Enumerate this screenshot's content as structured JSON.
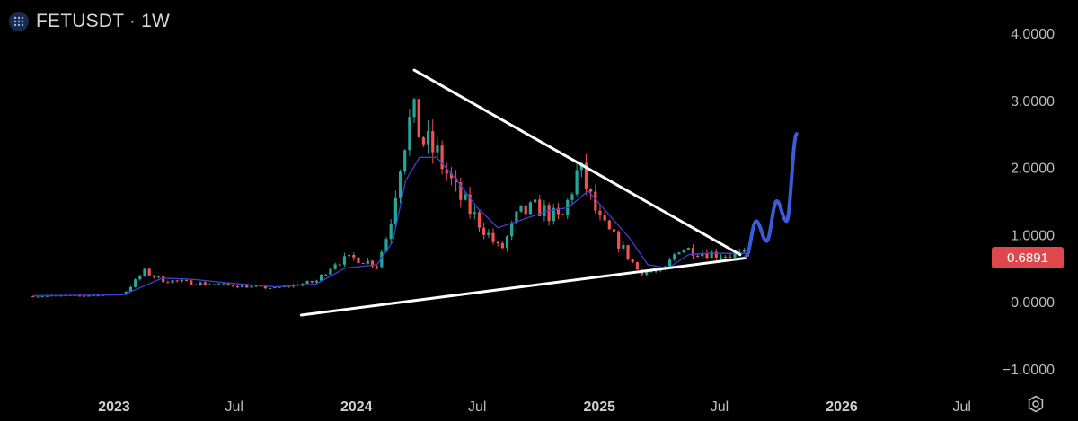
{
  "header": {
    "symbol": "FETUSDT",
    "separator": "·",
    "interval": "1W"
  },
  "price_badge": {
    "value": "0.6891",
    "color": "#e0474c"
  },
  "colors": {
    "up": "#26a69a",
    "down": "#ef5350",
    "ma": "#3f3fd0",
    "trendline": "#ffffff",
    "projection": "#3b5bdb"
  },
  "icons": {
    "logo": "fetch-ai-logo-icon",
    "settings": "gear-icon"
  },
  "chart_data": {
    "type": "candlestick",
    "symbol": "FETUSDT",
    "interval": "1W",
    "y_ticks": [
      "4.0000",
      "3.0000",
      "2.0000",
      "1.0000",
      "0.0000",
      "−1.0000"
    ],
    "x_ticks": [
      {
        "label": "2023",
        "bold": true
      },
      {
        "label": "Jul",
        "bold": false
      },
      {
        "label": "2024",
        "bold": true
      },
      {
        "label": "Jul",
        "bold": false
      },
      {
        "label": "2025",
        "bold": true
      },
      {
        "label": "Jul",
        "bold": false
      },
      {
        "label": "2026",
        "bold": true
      },
      {
        "label": "Jul",
        "bold": false
      }
    ],
    "ylim": [
      -1.0,
      4.0
    ],
    "last_price": 0.6891,
    "close_path": [
      [
        "2022-09-01",
        0.08
      ],
      [
        "2022-12-01",
        0.09
      ],
      [
        "2023-01-15",
        0.11
      ],
      [
        "2023-02-15",
        0.45
      ],
      [
        "2023-03-15",
        0.32
      ],
      [
        "2023-05-01",
        0.28
      ],
      [
        "2023-07-01",
        0.24
      ],
      [
        "2023-09-01",
        0.2
      ],
      [
        "2023-11-01",
        0.3
      ],
      [
        "2023-12-01",
        0.6
      ],
      [
        "2024-01-01",
        0.65
      ],
      [
        "2024-02-01",
        0.55
      ],
      [
        "2024-02-20",
        1.1
      ],
      [
        "2024-03-10",
        2.3
      ],
      [
        "2024-03-25",
        2.8
      ],
      [
        "2024-04-10",
        2.4
      ],
      [
        "2024-05-01",
        2.2
      ],
      [
        "2024-06-01",
        1.6
      ],
      [
        "2024-07-10",
        1.1
      ],
      [
        "2024-08-05",
        0.75
      ],
      [
        "2024-09-01",
        1.3
      ],
      [
        "2024-10-01",
        1.4
      ],
      [
        "2024-11-05",
        1.2
      ],
      [
        "2024-12-01",
        2.0
      ],
      [
        "2025-01-01",
        1.2
      ],
      [
        "2025-02-01",
        0.85
      ],
      [
        "2025-03-01",
        0.45
      ],
      [
        "2025-04-07",
        0.45
      ],
      [
        "2025-05-01",
        0.8
      ],
      [
        "2025-06-01",
        0.75
      ],
      [
        "2025-07-01",
        0.7
      ],
      [
        "2025-08-15",
        0.69
      ]
    ],
    "moving_average": [
      [
        "2022-09-01",
        0.09
      ],
      [
        "2023-01-15",
        0.1
      ],
      [
        "2023-03-15",
        0.35
      ],
      [
        "2023-05-01",
        0.33
      ],
      [
        "2023-07-01",
        0.27
      ],
      [
        "2023-09-01",
        0.22
      ],
      [
        "2023-11-01",
        0.26
      ],
      [
        "2023-12-15",
        0.5
      ],
      [
        "2024-02-01",
        0.55
      ],
      [
        "2024-02-25",
        0.9
      ],
      [
        "2024-03-15",
        1.8
      ],
      [
        "2024-04-05",
        2.15
      ],
      [
        "2024-05-01",
        2.15
      ],
      [
        "2024-06-01",
        1.8
      ],
      [
        "2024-07-01",
        1.4
      ],
      [
        "2024-08-01",
        1.1
      ],
      [
        "2024-09-01",
        1.2
      ],
      [
        "2024-10-15",
        1.35
      ],
      [
        "2024-11-15",
        1.4
      ],
      [
        "2024-12-15",
        1.65
      ],
      [
        "2025-01-15",
        1.3
      ],
      [
        "2025-02-15",
        0.95
      ],
      [
        "2025-03-15",
        0.55
      ],
      [
        "2025-04-15",
        0.5
      ],
      [
        "2025-05-15",
        0.7
      ],
      [
        "2025-06-15",
        0.72
      ],
      [
        "2025-08-15",
        0.72
      ]
    ],
    "trendlines": [
      {
        "name": "upper",
        "points": [
          [
            "2024-03-28",
            3.45
          ],
          [
            "2025-08-01",
            0.7
          ]
        ]
      },
      {
        "name": "lower",
        "points": [
          [
            "2023-10-10",
            -0.2
          ],
          [
            "2025-08-10",
            0.65
          ]
        ]
      }
    ],
    "projection": [
      [
        "2025-08-10",
        0.68
      ],
      [
        "2025-08-25",
        1.2
      ],
      [
        "2025-09-10",
        0.9
      ],
      [
        "2025-09-25",
        1.5
      ],
      [
        "2025-10-10",
        1.2
      ],
      [
        "2025-10-25",
        2.5
      ]
    ]
  }
}
